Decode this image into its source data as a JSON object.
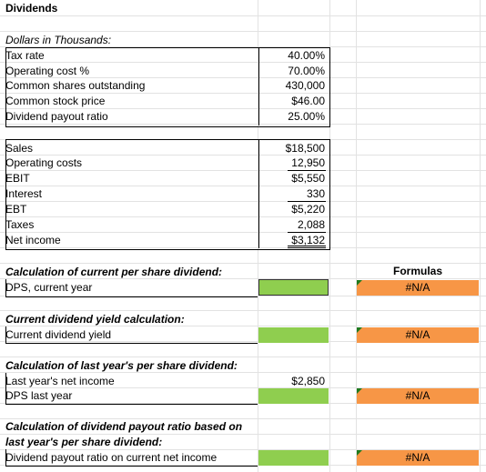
{
  "title": "Dividends",
  "inputs": {
    "units_label": "Dollars in Thousands:",
    "rows": [
      {
        "label": "Tax rate",
        "value": "40.00%"
      },
      {
        "label": "Operating cost %",
        "value": "70.00%"
      },
      {
        "label": "Common shares outstanding",
        "value": "430,000"
      },
      {
        "label": "Common stock price",
        "value": "$46.00"
      },
      {
        "label": "Dividend payout ratio",
        "value": "25.00%"
      }
    ]
  },
  "income_statement": [
    {
      "label": "Sales",
      "value": "$18,500"
    },
    {
      "label": "Operating costs",
      "value": "12,950"
    },
    {
      "label": "EBIT",
      "value": "$5,550"
    },
    {
      "label": "Interest",
      "value": "330"
    },
    {
      "label": "EBT",
      "value": "$5,220"
    },
    {
      "label": "Taxes",
      "value": "2,088"
    },
    {
      "label": "Net income",
      "value": "$3,132"
    }
  ],
  "formulas_header": "Formulas",
  "sections": {
    "current_dps": {
      "heading": "Calculation of current per share dividend:",
      "row_label": "DPS, current year",
      "formula_value": "#N/A"
    },
    "dividend_yield": {
      "heading": "Current dividend yield calculation:",
      "row_label": "Current dividend yield",
      "formula_value": "#N/A"
    },
    "last_year_dps": {
      "heading": "Calculation of last year's per share dividend:",
      "net_income_label": "Last year's net income",
      "net_income_value": "$2,850",
      "row_label": "DPS last year",
      "formula_value": "#N/A"
    },
    "payout_ratio": {
      "heading_line1": "Calculation of dividend payout ratio based on",
      "heading_line2": "last year's per share dividend:",
      "row_label": "Dividend payout ratio on current net income",
      "formula_value": "#N/A"
    }
  },
  "colors": {
    "input_green": "#8fce4f",
    "formula_orange": "#f79646",
    "grid": "#e2e2e2",
    "error_triangle": "#1e7a1e"
  }
}
